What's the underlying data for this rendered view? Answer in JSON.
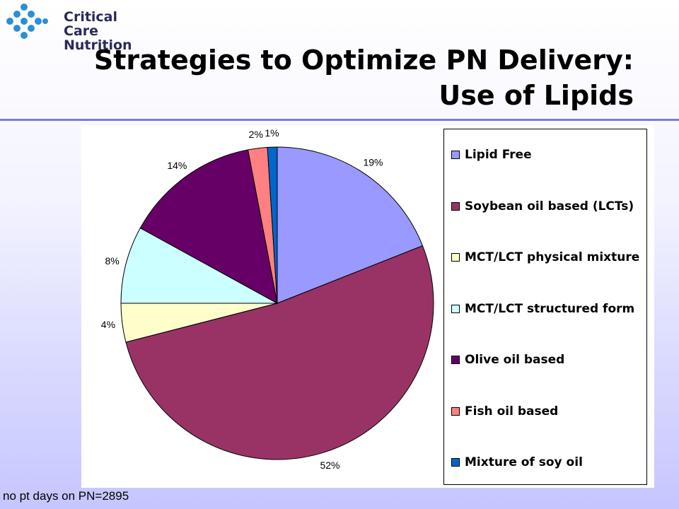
{
  "logo": {
    "line1": "Critical Care",
    "line2": "Nutrition",
    "mark": "ccn-dots-logo"
  },
  "title": {
    "line1": "Strategies to Optimize PN Delivery:",
    "line2": "Use of Lipids"
  },
  "footnote": "no pt days on PN=2895",
  "colors": {
    "accent_rule": "#7b7bd1",
    "logo_blue": "#2b8fd6",
    "logo_text": "#2a2a5a"
  },
  "chart_data": {
    "type": "pie",
    "title": "",
    "legend_position": "right",
    "slices": [
      {
        "name": "Lipid Free",
        "value": 19,
        "label": "19%",
        "color": "#9999ff"
      },
      {
        "name": "Soybean oil based (LCTs)",
        "value": 52,
        "label": "52%",
        "color": "#993366"
      },
      {
        "name": "MCT/LCT physical mixture",
        "value": 4,
        "label": "4%",
        "color": "#ffffcc"
      },
      {
        "name": "MCT/LCT structured form",
        "value": 8,
        "label": "8%",
        "color": "#ccffff"
      },
      {
        "name": "Olive oil based",
        "value": 14,
        "label": "14%",
        "color": "#660066"
      },
      {
        "name": "Fish oil based",
        "value": 2,
        "label": "2%",
        "color": "#ff8080"
      },
      {
        "name": "Mixture of soy oil",
        "value": 1,
        "label": "1%",
        "color": "#0066cc"
      }
    ]
  }
}
